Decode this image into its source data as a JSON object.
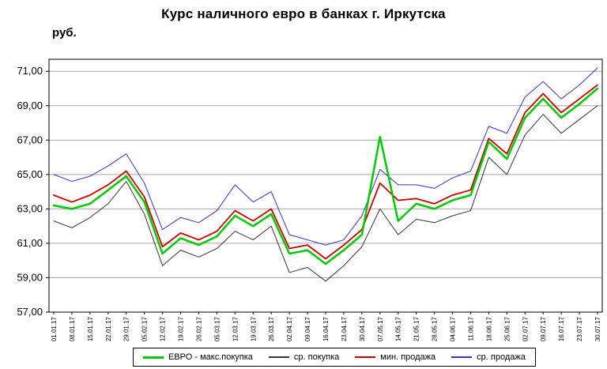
{
  "chart_data": {
    "type": "line",
    "title": "Курс наличного евро в банках г. Иркутска",
    "ylabel": "руб.",
    "grid": "horizontal",
    "legend_position": "bottom",
    "ylim": [
      57,
      71.7
    ],
    "yticks": [
      {
        "value": 57,
        "label": "57,00"
      },
      {
        "value": 59,
        "label": "59,00"
      },
      {
        "value": 61,
        "label": "61,00"
      },
      {
        "value": 63,
        "label": "63,00"
      },
      {
        "value": 65,
        "label": "65,00"
      },
      {
        "value": 67,
        "label": "67,00"
      },
      {
        "value": 69,
        "label": "69,00"
      },
      {
        "value": 71,
        "label": "71,00"
      }
    ],
    "x": [
      "01.01.17",
      "08.01.17",
      "15.01.17",
      "22.01.17",
      "29.01.17",
      "05.02.17",
      "12.02.17",
      "19.02.17",
      "26.02.17",
      "05.03.17",
      "12.03.17",
      "19.03.17",
      "26.03.17",
      "02.04.17",
      "09.04.17",
      "16.04.17",
      "23.04.17",
      "30.04.17",
      "07.05.17",
      "14.05.17",
      "21.05.17",
      "28.05.17",
      "04.06.17",
      "11.06.17",
      "18.06.17",
      "25.06.17",
      "02.07.17",
      "09.07.17",
      "16.07.17",
      "23.07.17",
      "30.07.17"
    ],
    "series": [
      {
        "name": "ЕВРО - макс.покупка",
        "color": "#00cc00",
        "width": 2.5,
        "values": [
          63.2,
          63.0,
          63.3,
          64.1,
          64.9,
          63.4,
          60.4,
          61.3,
          60.9,
          61.4,
          62.6,
          62.0,
          62.7,
          60.4,
          60.6,
          59.8,
          60.6,
          61.5,
          67.2,
          62.3,
          63.3,
          63.0,
          63.5,
          63.8,
          66.9,
          65.9,
          68.3,
          69.4,
          68.3,
          69.1,
          70.0
        ]
      },
      {
        "name": "ср. покупка",
        "color": "#333333",
        "width": 1,
        "values": [
          62.3,
          61.9,
          62.5,
          63.3,
          64.6,
          62.7,
          59.7,
          60.6,
          60.2,
          60.7,
          61.7,
          61.2,
          62.0,
          59.3,
          59.6,
          58.8,
          59.7,
          60.8,
          63.0,
          61.5,
          62.4,
          62.2,
          62.6,
          62.9,
          66.0,
          65.0,
          67.3,
          68.5,
          67.4,
          68.2,
          69.0
        ]
      },
      {
        "name": "мин. продажа",
        "color": "#cc0000",
        "width": 1.8,
        "values": [
          63.8,
          63.4,
          63.8,
          64.4,
          65.2,
          63.7,
          60.8,
          61.6,
          61.2,
          61.7,
          62.9,
          62.3,
          63.0,
          60.7,
          60.9,
          60.1,
          60.9,
          61.8,
          64.5,
          63.5,
          63.6,
          63.3,
          63.8,
          64.1,
          67.1,
          66.2,
          68.6,
          69.7,
          68.6,
          69.4,
          70.2
        ]
      },
      {
        "name": "ср. продажа",
        "color": "#3333cc",
        "width": 1,
        "values": [
          65.0,
          64.6,
          64.9,
          65.5,
          66.2,
          64.5,
          61.8,
          62.5,
          62.2,
          62.9,
          64.4,
          63.4,
          64.0,
          61.5,
          61.2,
          60.9,
          61.2,
          62.6,
          65.3,
          64.4,
          64.4,
          64.2,
          64.8,
          65.2,
          67.8,
          67.4,
          69.5,
          70.4,
          69.4,
          70.2,
          71.2
        ]
      }
    ]
  }
}
